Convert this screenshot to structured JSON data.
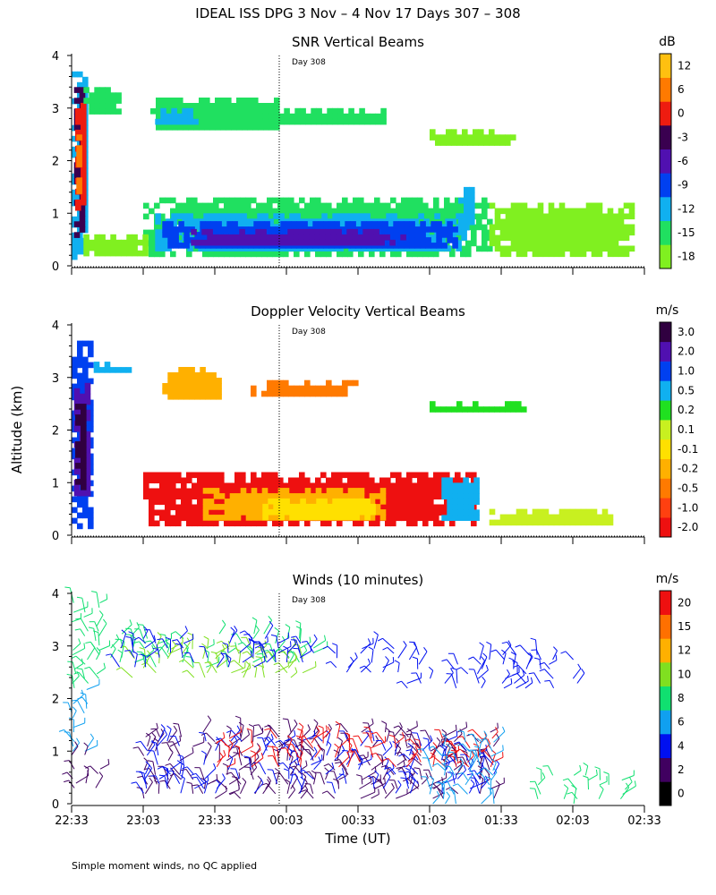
{
  "main_title": "IDEAL ISS DPG    3 Nov –  4 Nov 17 Days 307 – 308",
  "y_label": "Altitude (km)",
  "x_label": "Time (UT)",
  "footnote": "Simple moment winds, no QC applied",
  "day_marker": "Day 308",
  "x_ticks": [
    "22:33",
    "23:03",
    "23:33",
    "00:03",
    "00:33",
    "01:03",
    "01:33",
    "02:03",
    "02:33"
  ],
  "x_domain_minutes": [
    0,
    240
  ],
  "day_marker_minutes": 87,
  "y_ticks": [
    "0",
    "1",
    "2",
    "3",
    "4"
  ],
  "colors": {
    "snr": [
      "#80f020",
      "#20e060",
      "#10b0f0",
      "#0040f0",
      "#5010b0",
      "#3a0050",
      "#ee1c10",
      "#ff7a00",
      "#ffc010"
    ],
    "vel": [
      "#ee1010",
      "#ff4010",
      "#ff7a00",
      "#ffb000",
      "#ffe000",
      "#c8f020",
      "#20e020",
      "#10b0f0",
      "#0040f0",
      "#5010b0",
      "#300040"
    ],
    "wind": [
      "#000000",
      "#400060",
      "#0010f0",
      "#10a0f0",
      "#10e070",
      "#80e020",
      "#ffb000",
      "#ff7000",
      "#ee1010"
    ]
  },
  "chart_data": [
    {
      "type": "heatmap",
      "title": "SNR Vertical Beams",
      "xlabel": "",
      "ylabel": "Altitude (km)",
      "ylim": [
        0,
        4
      ],
      "colorbar": {
        "unit": "dB",
        "labels": [
          "-18",
          "-15",
          "-12",
          "-9",
          "-6",
          "-3",
          "0",
          "6",
          "12"
        ]
      },
      "regions": [
        {
          "x": [
            0,
            6
          ],
          "alt": [
            0.2,
            3.8
          ],
          "level": 2
        },
        {
          "x": [
            1,
            5
          ],
          "alt": [
            0.5,
            3.4
          ],
          "level": 5
        },
        {
          "x": [
            1.5,
            4
          ],
          "alt": [
            1.0,
            3.1
          ],
          "level": 6
        },
        {
          "x": [
            2,
            3.5
          ],
          "alt": [
            1.4,
            2.6
          ],
          "level": 7
        },
        {
          "x": [
            5,
            20
          ],
          "alt": [
            2.9,
            3.4
          ],
          "level": 1
        },
        {
          "x": [
            33,
            87
          ],
          "alt": [
            2.6,
            3.2
          ],
          "level": 1
        },
        {
          "x": [
            35,
            52
          ],
          "alt": [
            2.7,
            3.0
          ],
          "level": 2
        },
        {
          "x": [
            80,
            130
          ],
          "alt": [
            2.7,
            3.0
          ],
          "level": 1
        },
        {
          "x": [
            150,
            185
          ],
          "alt": [
            2.3,
            2.6
          ],
          "level": 0
        },
        {
          "x": [
            30,
            175
          ],
          "alt": [
            0.2,
            1.3
          ],
          "level": 1
        },
        {
          "x": [
            35,
            165
          ],
          "alt": [
            0.3,
            1.0
          ],
          "level": 2
        },
        {
          "x": [
            38,
            160
          ],
          "alt": [
            0.35,
            0.85
          ],
          "level": 3
        },
        {
          "x": [
            50,
            140
          ],
          "alt": [
            0.45,
            0.7
          ],
          "level": 4
        },
        {
          "x": [
            162,
            168
          ],
          "alt": [
            0.7,
            1.5
          ],
          "level": 2
        },
        {
          "x": [
            5,
            30
          ],
          "alt": [
            0.2,
            0.6
          ],
          "level": 0
        },
        {
          "x": [
            175,
            235
          ],
          "alt": [
            0.2,
            1.2
          ],
          "level": 0
        }
      ]
    },
    {
      "type": "heatmap",
      "title": "Doppler Velocity Vertical Beams",
      "xlabel": "",
      "ylabel": "Altitude (km)",
      "ylim": [
        0,
        4
      ],
      "colorbar": {
        "unit": "m/s",
        "labels": [
          "-2.0",
          "-1.0",
          "-0.5",
          "-0.2",
          "-0.1",
          "0.1",
          "0.2",
          "0.5",
          "1.0",
          "2.0",
          "3.0"
        ]
      },
      "regions": [
        {
          "x": [
            0,
            7
          ],
          "alt": [
            0.2,
            3.7
          ],
          "level": 8
        },
        {
          "x": [
            1,
            6
          ],
          "alt": [
            0.8,
            3.0
          ],
          "level": 9
        },
        {
          "x": [
            1.5,
            5
          ],
          "alt": [
            0.9,
            2.5
          ],
          "level": 10
        },
        {
          "x": [
            7,
            25
          ],
          "alt": [
            3.1,
            3.3
          ],
          "level": 7
        },
        {
          "x": [
            38,
            62
          ],
          "alt": [
            2.6,
            3.2
          ],
          "level": 3
        },
        {
          "x": [
            75,
            118
          ],
          "alt": [
            2.7,
            2.95
          ],
          "level": 2
        },
        {
          "x": [
            150,
            190
          ],
          "alt": [
            2.35,
            2.55
          ],
          "level": 6
        },
        {
          "x": [
            30,
            168
          ],
          "alt": [
            0.2,
            1.2
          ],
          "level": 0
        },
        {
          "x": [
            55,
            130
          ],
          "alt": [
            0.3,
            0.9
          ],
          "level": 3
        },
        {
          "x": [
            80,
            125
          ],
          "alt": [
            0.35,
            0.7
          ],
          "level": 4
        },
        {
          "x": [
            155,
            170
          ],
          "alt": [
            0.3,
            1.1
          ],
          "level": 7
        },
        {
          "x": [
            175,
            225
          ],
          "alt": [
            0.2,
            0.5
          ],
          "level": 5
        }
      ]
    },
    {
      "type": "wind_barbs",
      "title": "Winds (10 minutes)",
      "xlabel": "Time (UT)",
      "ylabel": "Altitude (km)",
      "ylim": [
        0,
        4
      ],
      "colorbar": {
        "unit": "m/s",
        "labels": [
          "0",
          "2",
          "4",
          "6",
          "8",
          "10",
          "12",
          "15",
          "20"
        ]
      },
      "groups": [
        {
          "x": [
            0,
            10
          ],
          "alt": [
            2.2,
            3.9
          ],
          "level": 4
        },
        {
          "x": [
            0,
            8
          ],
          "alt": [
            1.0,
            2.2
          ],
          "level": 3
        },
        {
          "x": [
            0,
            10
          ],
          "alt": [
            0.3,
            1.0
          ],
          "level": 1
        },
        {
          "x": [
            15,
            100
          ],
          "alt": [
            2.6,
            3.3
          ],
          "level": 4
        },
        {
          "x": [
            25,
            100
          ],
          "alt": [
            2.4,
            3.0
          ],
          "level": 5
        },
        {
          "x": [
            20,
            100
          ],
          "alt": [
            2.6,
            3.2
          ],
          "level": 2
        },
        {
          "x": [
            110,
            135
          ],
          "alt": [
            2.5,
            3.0
          ],
          "level": 2
        },
        {
          "x": [
            140,
            210
          ],
          "alt": [
            2.2,
            2.9
          ],
          "level": 2
        },
        {
          "x": [
            30,
            175
          ],
          "alt": [
            0.1,
            1.4
          ],
          "level": 1
        },
        {
          "x": [
            30,
            175
          ],
          "alt": [
            0.2,
            1.2
          ],
          "level": 2
        },
        {
          "x": [
            60,
            175
          ],
          "alt": [
            0.7,
            1.3
          ],
          "level": 8
        },
        {
          "x": [
            150,
            175
          ],
          "alt": [
            0.0,
            1.2
          ],
          "level": 3
        },
        {
          "x": [
            195,
            230
          ],
          "alt": [
            0.0,
            0.6
          ],
          "level": 4
        }
      ]
    }
  ]
}
